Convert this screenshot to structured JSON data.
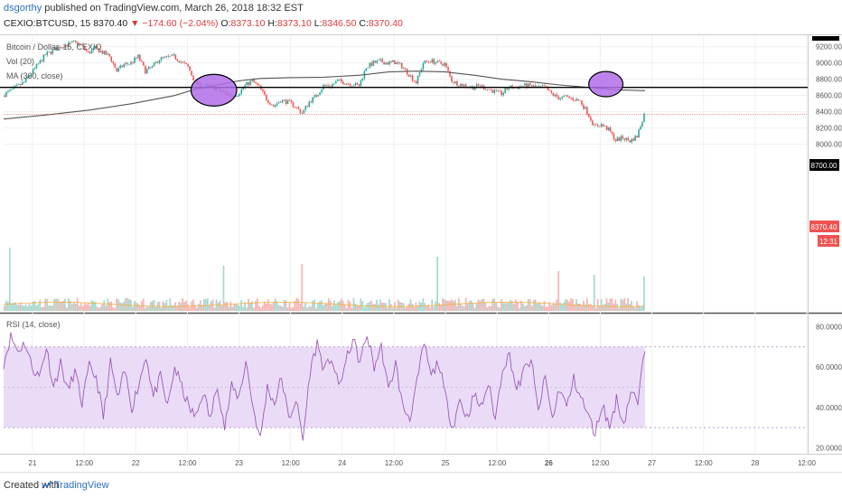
{
  "header": {
    "author": "dsgorthy",
    "published_text": " published on TradingView.com, March 26, 2018 18:32 EST",
    "symbol": "CEXIO:BTCUSD, 15",
    "last": "8370.40",
    "change": "▼ −174.60 (−2.04%)",
    "o_label": "O:",
    "o": "8373.10",
    "h_label": "H:",
    "h": "8373.10",
    "l_label": "L:",
    "l": "8346.50",
    "c_label": "C:",
    "c": "8370.40"
  },
  "legend": {
    "pair": "Bitcoin / Dollar, 15, CEXIO",
    "vol": "Vol (20)",
    "ma": "MA (360, close)",
    "rsi": "RSI (14, close)"
  },
  "price_tag": "8370.40",
  "countdown": "12:31",
  "line_tag": "8700.00",
  "footer": {
    "created": "Created with",
    "brand": "TradingView"
  },
  "colors": {
    "up": "#26a69a",
    "down": "#ef5350",
    "ma": "#555555",
    "rsi": "#9c5ab8",
    "rsi_band": "#eadcf6",
    "circle": "#b06ee8",
    "hline": "#000000",
    "price": "#ef5350"
  },
  "chart_data": [
    {
      "type": "candlestick",
      "title": "Bitcoin / Dollar, 15, CEXIO",
      "ylim": [
        5950,
        9330
      ],
      "yticks": [
        {
          "v": 9200,
          "label": "9200.00"
        },
        {
          "v": 9000,
          "label": "9000.00"
        },
        {
          "v": 8800,
          "label": "8800.00"
        },
        {
          "v": 8600,
          "label": "8600.00"
        },
        {
          "v": 8400,
          "label": "8400.00"
        },
        {
          "v": 8200,
          "label": "8200.00"
        },
        {
          "v": 8000,
          "label": "8000.00"
        }
      ],
      "xticks": [
        "21",
        "12:00",
        "22",
        "12:00",
        "23",
        "12:00",
        "24",
        "12:00",
        "25",
        "12:00",
        "26",
        "12:00",
        "27",
        "12:00",
        "28",
        "12:00"
      ],
      "xticks_bold": [
        "26"
      ],
      "close_path": [
        [
          0,
          8600
        ],
        [
          3,
          8760
        ],
        [
          6,
          9100
        ],
        [
          8,
          9200
        ],
        [
          10,
          9250
        ],
        [
          11,
          9220
        ],
        [
          12,
          9120
        ],
        [
          13,
          9180
        ],
        [
          15,
          9080
        ],
        [
          16,
          8900
        ],
        [
          17,
          8980
        ],
        [
          18,
          9000
        ],
        [
          19,
          9080
        ],
        [
          20,
          8900
        ],
        [
          21,
          8950
        ],
        [
          22,
          9050
        ],
        [
          24,
          9080
        ],
        [
          26,
          8950
        ],
        [
          27,
          8760
        ],
        [
          28,
          8700
        ],
        [
          29,
          8720
        ],
        [
          30,
          8680
        ],
        [
          31,
          8640
        ],
        [
          32,
          8600
        ],
        [
          33,
          8620
        ],
        [
          34,
          8720
        ],
        [
          35,
          8780
        ],
        [
          36,
          8700
        ],
        [
          37,
          8560
        ],
        [
          38,
          8470
        ],
        [
          39,
          8540
        ],
        [
          40,
          8520
        ],
        [
          41,
          8470
        ],
        [
          42,
          8380
        ],
        [
          43,
          8520
        ],
        [
          44,
          8600
        ],
        [
          45,
          8720
        ],
        [
          46,
          8720
        ],
        [
          47,
          8780
        ],
        [
          48,
          8760
        ],
        [
          50,
          8720
        ],
        [
          51,
          8950
        ],
        [
          52,
          9000
        ],
        [
          53,
          9020
        ],
        [
          54,
          9000
        ],
        [
          55,
          9010
        ],
        [
          56,
          8960
        ],
        [
          57,
          8860
        ],
        [
          58,
          8760
        ],
        [
          59,
          9000
        ],
        [
          60,
          9030
        ],
        [
          61,
          9000
        ],
        [
          62,
          8990
        ],
        [
          63,
          8780
        ],
        [
          64,
          8740
        ],
        [
          65,
          8720
        ],
        [
          66,
          8700
        ],
        [
          67,
          8720
        ],
        [
          68,
          8680
        ],
        [
          69,
          8650
        ],
        [
          70,
          8620
        ],
        [
          71,
          8700
        ],
        [
          72,
          8700
        ],
        [
          73,
          8720
        ],
        [
          74,
          8720
        ],
        [
          75,
          8700
        ],
        [
          76,
          8700
        ],
        [
          77,
          8620
        ],
        [
          78,
          8570
        ],
        [
          79,
          8580
        ],
        [
          80,
          8560
        ],
        [
          81,
          8530
        ],
        [
          82,
          8400
        ],
        [
          83,
          8220
        ],
        [
          84,
          8240
        ],
        [
          85,
          8180
        ],
        [
          86,
          8050
        ],
        [
          87,
          8080
        ],
        [
          88,
          8040
        ],
        [
          89,
          8100
        ],
        [
          90,
          8370
        ]
      ],
      "candles_count": 360,
      "x_index_range": [
        0,
        90
      ],
      "ma_path": [
        [
          0,
          8310
        ],
        [
          6,
          8360
        ],
        [
          12,
          8420
        ],
        [
          18,
          8500
        ],
        [
          24,
          8600
        ],
        [
          27,
          8680
        ],
        [
          30,
          8730
        ],
        [
          33,
          8780
        ],
        [
          36,
          8810
        ],
        [
          40,
          8820
        ],
        [
          45,
          8825
        ],
        [
          50,
          8850
        ],
        [
          54,
          8890
        ],
        [
          58,
          8900
        ],
        [
          62,
          8890
        ],
        [
          66,
          8850
        ],
        [
          70,
          8800
        ],
        [
          74,
          8770
        ],
        [
          78,
          8730
        ],
        [
          82,
          8700
        ],
        [
          86,
          8670
        ],
        [
          90,
          8660
        ]
      ],
      "volume": {
        "ylim": [
          0,
          400
        ],
        "typical": 40,
        "spikes": [
          [
            1,
            350
          ],
          [
            31,
            250
          ],
          [
            42,
            260
          ],
          [
            61,
            300
          ],
          [
            78,
            220
          ],
          [
            83,
            200
          ],
          [
            90,
            190
          ]
        ]
      },
      "horizontal_line": 8700,
      "price_line": 8370.4,
      "circles": [
        {
          "x": 29.5,
          "y": 8665,
          "rx": 3.2,
          "ry": 195
        },
        {
          "x": 84.5,
          "y": 8740,
          "rx": 2.4,
          "ry": 155
        }
      ]
    },
    {
      "type": "line",
      "title": "RSI (14, close)",
      "ylim": [
        18,
        86
      ],
      "yticks": [
        {
          "v": 80,
          "label": "80.0000"
        },
        {
          "v": 60,
          "label": "60.0000"
        },
        {
          "v": 40,
          "label": "40.0000"
        },
        {
          "v": 20,
          "label": "20.0000"
        }
      ],
      "band": [
        30,
        70
      ],
      "series_path": [
        [
          0,
          62
        ],
        [
          1,
          75
        ],
        [
          2,
          68
        ],
        [
          3,
          72
        ],
        [
          4,
          60
        ],
        [
          5,
          55
        ],
        [
          6,
          70
        ],
        [
          7,
          50
        ],
        [
          8,
          62
        ],
        [
          9,
          48
        ],
        [
          10,
          58
        ],
        [
          11,
          42
        ],
        [
          12,
          60
        ],
        [
          13,
          55
        ],
        [
          14,
          35
        ],
        [
          15,
          62
        ],
        [
          16,
          44
        ],
        [
          17,
          58
        ],
        [
          18,
          40
        ],
        [
          19,
          52
        ],
        [
          20,
          66
        ],
        [
          21,
          45
        ],
        [
          22,
          55
        ],
        [
          23,
          40
        ],
        [
          24,
          60
        ],
        [
          25,
          50
        ],
        [
          26,
          40
        ],
        [
          27,
          35
        ],
        [
          28,
          48
        ],
        [
          29,
          34
        ],
        [
          30,
          52
        ],
        [
          31,
          30
        ],
        [
          32,
          50
        ],
        [
          33,
          45
        ],
        [
          34,
          63
        ],
        [
          35,
          40
        ],
        [
          36,
          24
        ],
        [
          37,
          50
        ],
        [
          38,
          42
        ],
        [
          39,
          55
        ],
        [
          40,
          34
        ],
        [
          41,
          44
        ],
        [
          42,
          24
        ],
        [
          43,
          58
        ],
        [
          44,
          72
        ],
        [
          45,
          58
        ],
        [
          46,
          65
        ],
        [
          47,
          50
        ],
        [
          48,
          62
        ],
        [
          49,
          74
        ],
        [
          50,
          62
        ],
        [
          51,
          76
        ],
        [
          52,
          60
        ],
        [
          53,
          70
        ],
        [
          54,
          48
        ],
        [
          55,
          62
        ],
        [
          56,
          40
        ],
        [
          57,
          35
        ],
        [
          58,
          52
        ],
        [
          59,
          72
        ],
        [
          60,
          55
        ],
        [
          61,
          63
        ],
        [
          62,
          45
        ],
        [
          63,
          30
        ],
        [
          64,
          44
        ],
        [
          65,
          35
        ],
        [
          66,
          46
        ],
        [
          67,
          40
        ],
        [
          68,
          52
        ],
        [
          69,
          34
        ],
        [
          70,
          60
        ],
        [
          71,
          66
        ],
        [
          72,
          48
        ],
        [
          73,
          58
        ],
        [
          74,
          64
        ],
        [
          75,
          38
        ],
        [
          76,
          55
        ],
        [
          77,
          34
        ],
        [
          78,
          50
        ],
        [
          79,
          40
        ],
        [
          80,
          54
        ],
        [
          81,
          45
        ],
        [
          82,
          36
        ],
        [
          83,
          27
        ],
        [
          84,
          42
        ],
        [
          85,
          30
        ],
        [
          86,
          44
        ],
        [
          87,
          32
        ],
        [
          88,
          48
        ],
        [
          89,
          42
        ],
        [
          90,
          70
        ]
      ]
    }
  ]
}
